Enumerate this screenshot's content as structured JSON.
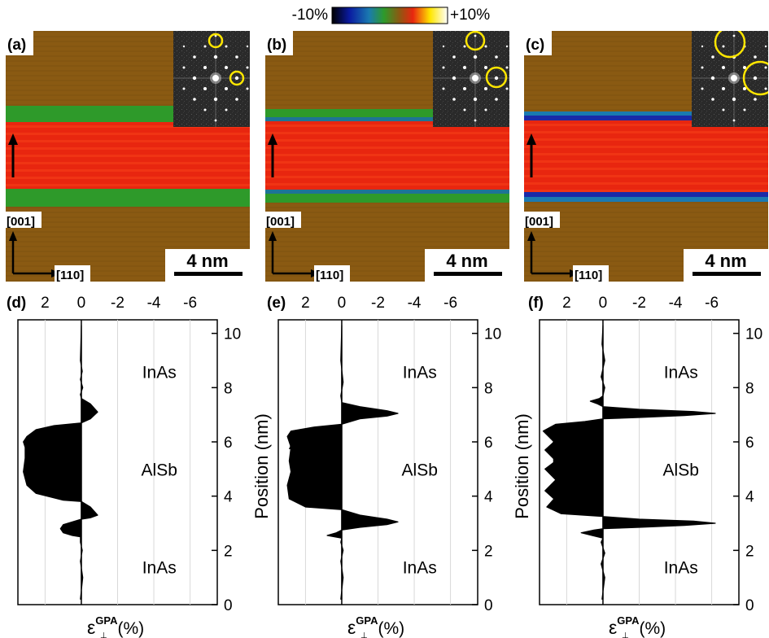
{
  "colorbar": {
    "min_label": "-10%",
    "max_label": "+10%"
  },
  "top_panels": [
    {
      "label": "(a)",
      "direction_up": "[001]",
      "direction_right": "[110]",
      "scale_bar": "4 nm",
      "fft_circle": "small",
      "interface_band": "green"
    },
    {
      "label": "(b)",
      "direction_up": "[001]",
      "direction_right": "[110]",
      "scale_bar": "4 nm",
      "fft_circle": "medium",
      "interface_band": "green-blue"
    },
    {
      "label": "(c)",
      "direction_up": "[001]",
      "direction_right": "[110]",
      "scale_bar": "4 nm",
      "fft_circle": "large",
      "interface_band": "blue"
    }
  ],
  "colors": {
    "background_layer": "#8a5a12",
    "alsb_layer": "#e8260f",
    "interface_green": "#2e9a2a",
    "interface_blue": "#1a2aa8",
    "fft_circle": "#ffe600"
  },
  "chart_data": [
    {
      "type": "area",
      "panel": "(d)",
      "x_ticks": [
        "2",
        "0",
        "-2",
        "-4",
        "-6"
      ],
      "x_range": [
        3.5,
        -7.5
      ],
      "y_ticks": [
        "0",
        "2",
        "4",
        "6",
        "8",
        "10"
      ],
      "ylim": [
        0,
        10.5
      ],
      "ylabel": "Position (nm)",
      "xlabel_main": "ε",
      "xlabel_sup": "GPA",
      "xlabel_unit": "(%)",
      "regions": [
        "InAs",
        "AlSb",
        "InAs"
      ],
      "series": [
        {
          "x": [
            0.05,
            -0.08,
            0.05,
            -0.05,
            0.05,
            0.05,
            0.5,
            1.0,
            1.15,
            1.0,
            0.0,
            -0.5,
            -0.9,
            -0.5,
            0.0,
            1.0,
            2.5,
            3.0,
            3.2,
            3.1,
            3.1,
            3.2,
            3.0,
            2.5,
            1.5,
            0.0,
            -0.5,
            -0.9,
            -0.5,
            0.0,
            0.05,
            -0.08,
            0.05,
            -0.05,
            0.05,
            0.0
          ],
          "y": [
            0.2,
            1.0,
            1.6,
            2.0,
            2.3,
            2.5,
            2.55,
            2.65,
            2.8,
            2.95,
            3.15,
            3.2,
            3.3,
            3.6,
            3.8,
            3.85,
            4.1,
            4.4,
            4.9,
            5.4,
            5.8,
            6.0,
            6.2,
            6.45,
            6.6,
            6.7,
            6.85,
            7.1,
            7.4,
            7.6,
            7.75,
            8.0,
            8.3,
            8.6,
            9.0,
            10.3
          ]
        }
      ]
    },
    {
      "type": "area",
      "panel": "(e)",
      "x_ticks": [
        "2",
        "0",
        "-2",
        "-4",
        "-6"
      ],
      "x_range": [
        3.5,
        -7.5
      ],
      "y_ticks": [
        "0",
        "2",
        "4",
        "6",
        "8",
        "10"
      ],
      "ylim": [
        0,
        10.5
      ],
      "ylabel": "Position (nm)",
      "xlabel_main": "ε",
      "xlabel_sup": "GPA",
      "xlabel_unit": "(%)",
      "regions": [
        "InAs",
        "AlSb",
        "InAs"
      ],
      "series": [
        {
          "x": [
            0.05,
            -0.08,
            0.05,
            -0.08,
            0.05,
            0.0,
            0.4,
            0.8,
            0.3,
            0.0,
            -1.0,
            -2.5,
            -3.1,
            -2.5,
            -1.0,
            0.0,
            2.0,
            2.9,
            3.0,
            2.8,
            2.9,
            2.8,
            3.0,
            2.8,
            1.5,
            0.0,
            -1.0,
            -2.5,
            -3.1,
            -2.5,
            -1.0,
            0.0,
            0.05,
            -0.08,
            0.05,
            0.0
          ],
          "y": [
            0.2,
            1.0,
            1.6,
            2.0,
            2.3,
            2.45,
            2.5,
            2.55,
            2.65,
            2.75,
            2.85,
            2.95,
            3.05,
            3.15,
            3.3,
            3.5,
            3.6,
            3.9,
            4.4,
            4.9,
            5.3,
            5.8,
            6.2,
            6.4,
            6.55,
            6.65,
            6.85,
            6.95,
            7.05,
            7.15,
            7.3,
            7.45,
            7.7,
            8.2,
            9.0,
            10.3
          ]
        }
      ]
    },
    {
      "type": "area",
      "panel": "(f)",
      "x_ticks": [
        "2",
        "0",
        "-2",
        "-4",
        "-6"
      ],
      "x_range": [
        3.5,
        -7.5
      ],
      "y_ticks": [
        "0",
        "2",
        "4",
        "6",
        "8",
        "10"
      ],
      "ylim": [
        0,
        10.5
      ],
      "ylabel": "Position (nm)",
      "xlabel_main": "ε",
      "xlabel_sup": "GPA",
      "xlabel_unit": "(%)",
      "regions": [
        "InAs",
        "AlSb",
        "InAs"
      ],
      "series": [
        {
          "x": [
            0.05,
            -0.1,
            0.1,
            -0.1,
            0.1,
            0.0,
            0.6,
            1.2,
            0.5,
            0.0,
            -2.0,
            -4.5,
            -6.2,
            -5.0,
            -2.0,
            0.0,
            2.3,
            3.1,
            2.7,
            3.2,
            2.6,
            3.2,
            2.6,
            3.2,
            2.7,
            3.3,
            2.6,
            1.0,
            0.0,
            -2.0,
            -4.5,
            -6.2,
            -5.0,
            -2.0,
            0.0,
            0.3,
            0.7,
            0.2,
            0.0,
            -0.1,
            0.1,
            -0.1,
            0.05,
            0.0
          ],
          "y": [
            0.2,
            1.0,
            1.5,
            1.9,
            2.3,
            2.45,
            2.55,
            2.65,
            2.75,
            2.8,
            2.85,
            2.92,
            3.0,
            3.08,
            3.15,
            3.25,
            3.35,
            3.6,
            3.9,
            4.2,
            4.6,
            5.0,
            5.3,
            5.7,
            6.0,
            6.4,
            6.65,
            6.75,
            6.85,
            6.9,
            6.97,
            7.05,
            7.12,
            7.2,
            7.3,
            7.4,
            7.5,
            7.6,
            7.7,
            8.0,
            8.4,
            9.0,
            9.6,
            10.3
          ]
        }
      ]
    }
  ]
}
